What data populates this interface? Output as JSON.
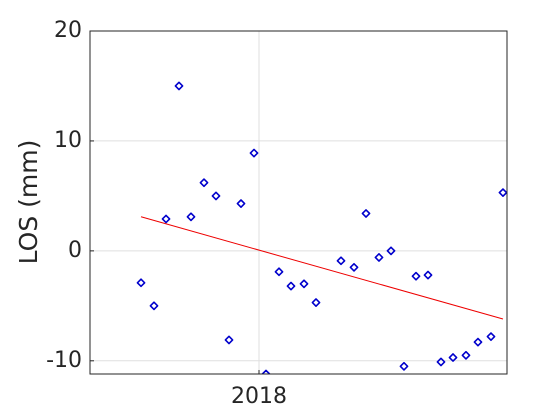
{
  "chart_data": {
    "type": "scatter",
    "ylabel": "LOS (mm)",
    "xlim": [
      2017.5505,
      2018.6596
    ],
    "ylim": [
      -11.2,
      20
    ],
    "xticks": [
      2018
    ],
    "yticks": [
      -10,
      0,
      10,
      20
    ],
    "grid": true,
    "series": [
      {
        "type": "scatter",
        "color": "#0000cc",
        "x": [
          2017.6862,
          2017.7207,
          2017.7527,
          2017.7872,
          2017.8191,
          2017.8537,
          2017.8856,
          2017.9202,
          2017.9521,
          2017.9867,
          2018.0186,
          2018.0532,
          2018.0851,
          2018.1197,
          2018.1516,
          2018.2181,
          2018.2527,
          2018.2846,
          2018.3191,
          2018.3511,
          2018.3856,
          2018.4176,
          2018.4495,
          2018.484,
          2018.516,
          2018.5505,
          2018.5824,
          2018.617,
          2018.6489
        ],
        "values": [
          -2.9,
          -5.0,
          2.9,
          15.0,
          3.1,
          6.2,
          5.0,
          -8.1,
          4.3,
          8.9,
          -11.2,
          -1.9,
          -3.2,
          -3.0,
          -4.7,
          -0.9,
          -1.5,
          3.4,
          -0.6,
          0.0,
          -10.5,
          -2.3,
          -2.2,
          -10.1,
          -9.7,
          -9.5,
          -8.3,
          -7.8,
          5.3
        ]
      },
      {
        "type": "line",
        "color": "#ee0000",
        "x": [
          2017.6862,
          2018.6489
        ],
        "values": [
          3.1,
          -6.2
        ]
      }
    ]
  }
}
